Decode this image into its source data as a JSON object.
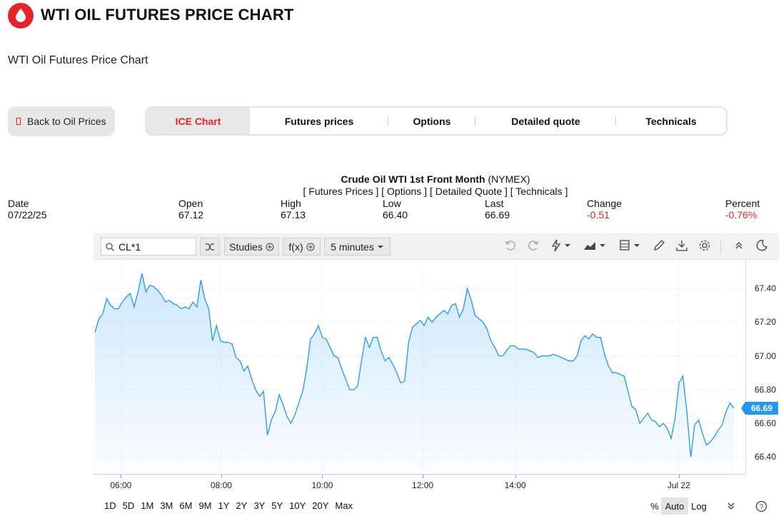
{
  "header": {
    "title": "WTI OIL FUTURES PRICE CHART",
    "subtitle": "WTI Oil Futures Price Chart",
    "brand_color": "#e4232b"
  },
  "nav": {
    "back_label": "Back to Oil Prices",
    "tabs": [
      {
        "label": "ICE Chart",
        "active": true
      },
      {
        "label": "Futures prices",
        "active": false
      },
      {
        "label": "Options",
        "active": false
      },
      {
        "label": "Detailed quote",
        "active": false
      },
      {
        "label": "Technicals",
        "active": false
      }
    ]
  },
  "quote": {
    "name_bold": "Crude Oil WTI 1st Front Month",
    "exchange": " (NYMEX)",
    "links": "[ Futures Prices ] [ Options ] [ Detailed Quote ] [ Technicals ]",
    "stats": [
      {
        "label": "Date",
        "value": "07/22/25",
        "negative": false
      },
      {
        "label": "Open",
        "value": "67.12",
        "negative": false
      },
      {
        "label": "High",
        "value": "67.13",
        "negative": false
      },
      {
        "label": "Low",
        "value": "66.40",
        "negative": false
      },
      {
        "label": "Last",
        "value": "66.69",
        "negative": false
      },
      {
        "label": "Change",
        "value": "-0.51",
        "negative": true
      },
      {
        "label": "Percent",
        "value": "-0.76%",
        "negative": true
      }
    ]
  },
  "toolbar": {
    "symbol": "CL*1",
    "studies_label": "Studies",
    "fx_label": "f(x)",
    "interval_label": "5 minutes",
    "icons": [
      "undo-icon",
      "redo-icon",
      "lightning-icon",
      "chart-type-icon",
      "layout-icon",
      "pencil-icon",
      "download-icon",
      "settings-icon",
      "collapse-icon",
      "dark-mode-icon"
    ]
  },
  "chart_data": {
    "type": "area",
    "title": "",
    "xlabel": "",
    "ylabel": "",
    "x_ticks": [
      "06:00",
      "08:00",
      "10:00",
      "12:00",
      "14:00",
      "Jul 22"
    ],
    "y_ticks": [
      "67.40",
      "67.20",
      "67.00",
      "66.80",
      "66.60",
      "66.40"
    ],
    "ylim": [
      66.3,
      67.57
    ],
    "grid": true,
    "line_color": "#2196f3",
    "last_price_label": "66.69",
    "series": [
      {
        "values": [
          67.14,
          67.22,
          67.25,
          67.34,
          67.3,
          67.28,
          67.28,
          67.32,
          67.35,
          67.37,
          67.29,
          67.38,
          67.49,
          67.38,
          67.42,
          67.41,
          67.39,
          67.36,
          67.32,
          67.33,
          67.31,
          67.3,
          67.28,
          67.29,
          67.28,
          67.32,
          67.29,
          67.45,
          67.34,
          67.28,
          67.09,
          67.18,
          67.09,
          67.08,
          67.08,
          67.07,
          66.99,
          66.97,
          66.91,
          66.94,
          66.86,
          66.8,
          66.76,
          66.79,
          66.53,
          66.62,
          66.67,
          66.77,
          66.71,
          66.64,
          66.6,
          66.65,
          66.72,
          66.79,
          66.92,
          67.1,
          67.13,
          67.18,
          67.11,
          67.1,
          67.05,
          67.0,
          66.99,
          66.92,
          66.86,
          66.8,
          66.8,
          66.82,
          66.97,
          67.11,
          67.05,
          67.11,
          67.11,
          67.03,
          66.97,
          66.99,
          66.95,
          66.9,
          66.84,
          66.85,
          67.08,
          67.17,
          67.19,
          67.21,
          67.18,
          67.23,
          67.2,
          67.23,
          67.25,
          67.27,
          67.25,
          67.3,
          67.31,
          67.23,
          67.28,
          67.4,
          67.33,
          67.24,
          67.22,
          67.2,
          67.16,
          67.09,
          67.05,
          67.0,
          67.0,
          67.03,
          67.06,
          67.06,
          67.04,
          67.04,
          67.04,
          67.03,
          67.02,
          66.99,
          67.0,
          67.0,
          67.0,
          67.01,
          67.0,
          66.99,
          66.98,
          66.97,
          66.97,
          67.0,
          67.09,
          67.12,
          67.1,
          67.13,
          67.11,
          67.11,
          67.01,
          66.94,
          66.9,
          66.9,
          66.89,
          66.88,
          66.79,
          66.7,
          66.68,
          66.6,
          66.63,
          66.66,
          66.62,
          66.61,
          66.58,
          66.6,
          66.57,
          66.51,
          66.63,
          66.84,
          66.88,
          66.67,
          66.4,
          66.59,
          66.62,
          66.54,
          66.47,
          66.49,
          66.52,
          66.56,
          66.59,
          66.67,
          66.72,
          66.69
        ]
      }
    ]
  },
  "ranges": [
    "1D",
    "5D",
    "1M",
    "3M",
    "6M",
    "9M",
    "1Y",
    "2Y",
    "3Y",
    "5Y",
    "10Y",
    "20Y",
    "Max"
  ],
  "scale_options": {
    "percent": "%",
    "auto": "Auto",
    "log": "Log"
  }
}
